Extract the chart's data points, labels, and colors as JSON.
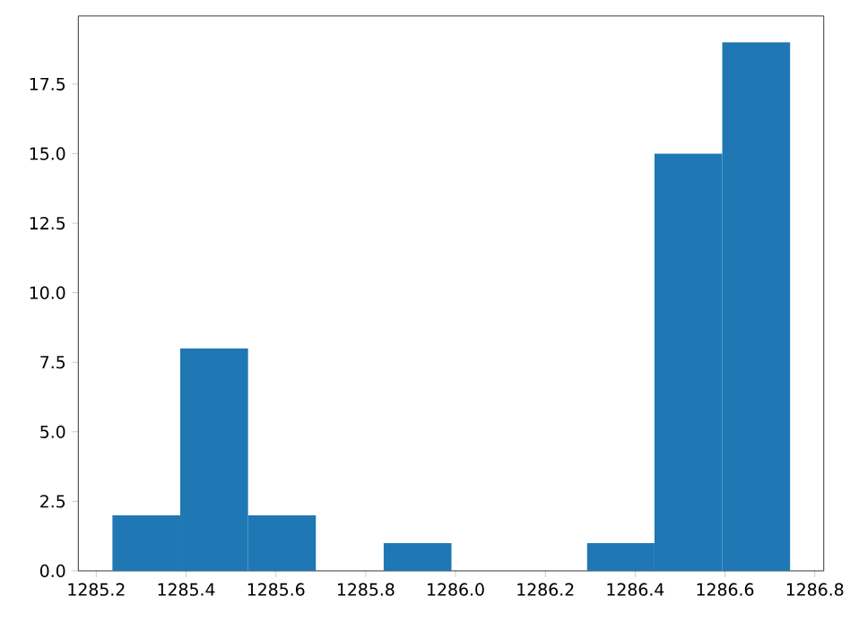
{
  "chart_data": {
    "type": "histogram",
    "bins": [
      1285.236,
      1285.387,
      1285.538,
      1285.689,
      1285.84,
      1285.991,
      1286.293,
      1286.443,
      1286.594,
      1286.745
    ],
    "values": [
      2,
      8,
      2,
      0,
      1,
      0,
      1,
      15,
      19
    ],
    "color": "#1f77b4",
    "xlim": [
      1285.16,
      1286.82
    ],
    "ylim": [
      0,
      19.95
    ],
    "xticks": [
      1285.2,
      1285.4,
      1285.6,
      1285.8,
      {
        "value": 1286.0,
        "label": "1286.0"
      },
      1286.2,
      1286.4,
      1286.6,
      1286.8
    ],
    "yticks": [
      {
        "value": 0,
        "label": "0.0"
      },
      {
        "value": 2.5,
        "label": "2.5"
      },
      {
        "value": 5,
        "label": "5.0"
      },
      {
        "value": 7.5,
        "label": "7.5"
      },
      {
        "value": 10,
        "label": "10.0"
      },
      {
        "value": 12.5,
        "label": "12.5"
      },
      {
        "value": 15,
        "label": "15.0"
      },
      {
        "value": 17.5,
        "label": "17.5"
      }
    ]
  }
}
